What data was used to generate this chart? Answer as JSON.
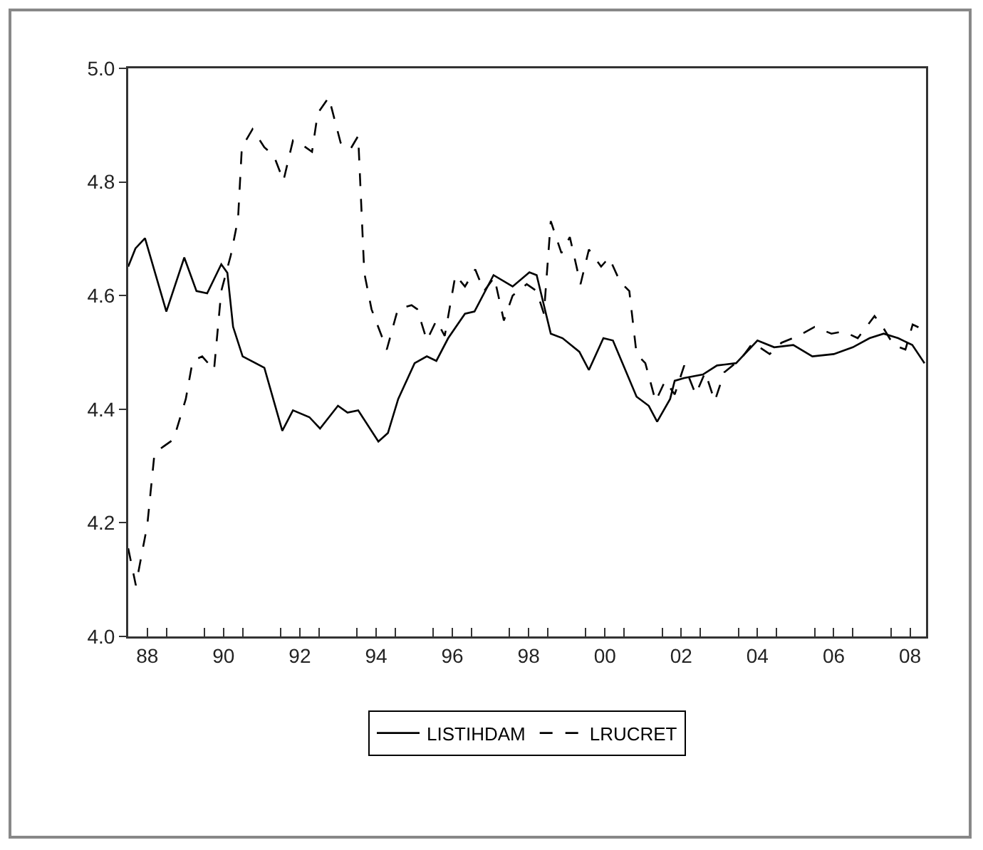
{
  "chart_data": {
    "type": "line",
    "xlim": [
      1987.5,
      2008.42
    ],
    "ylim": [
      4.0,
      5.0
    ],
    "yticks": [
      {
        "value": 4.0,
        "label": "4.0"
      },
      4.2,
      4.4,
      4.6,
      4.8,
      {
        "value": 5.0,
        "label": "5.0"
      }
    ],
    "xticks": [
      {
        "value": 1987.5,
        "label": null
      },
      {
        "value": 1988,
        "label": "88"
      },
      {
        "value": 1988.5,
        "label": null
      },
      {
        "value": 1989.5,
        "label": null
      },
      {
        "value": 1990,
        "label": "90"
      },
      {
        "value": 1990.5,
        "label": null
      },
      {
        "value": 1991.5,
        "label": null
      },
      {
        "value": 1992,
        "label": "92"
      },
      {
        "value": 1992.5,
        "label": null
      },
      {
        "value": 1993.5,
        "label": null
      },
      {
        "value": 1994,
        "label": "94"
      },
      {
        "value": 1994.5,
        "label": null
      },
      {
        "value": 1995.5,
        "label": null
      },
      {
        "value": 1996,
        "label": "96"
      },
      {
        "value": 1996.5,
        "label": null
      },
      {
        "value": 1997.5,
        "label": null
      },
      {
        "value": 1998,
        "label": "98"
      },
      {
        "value": 1998.5,
        "label": null
      },
      {
        "value": 1999.5,
        "label": null
      },
      {
        "value": 2000,
        "label": "00"
      },
      {
        "value": 2000.5,
        "label": null
      },
      {
        "value": 2001.5,
        "label": null
      },
      {
        "value": 2002,
        "label": "02"
      },
      {
        "value": 2002.5,
        "label": null
      },
      {
        "value": 2003.5,
        "label": null
      },
      {
        "value": 2004,
        "label": "04"
      },
      {
        "value": 2004.5,
        "label": null
      },
      {
        "value": 2005.5,
        "label": null
      },
      {
        "value": 2006,
        "label": "06"
      },
      {
        "value": 2006.5,
        "label": null
      },
      {
        "value": 2007.5,
        "label": null
      },
      {
        "value": 2008,
        "label": "08"
      }
    ],
    "legend": "bottom",
    "series": [
      {
        "name": "LISTIHDAM",
        "color": "#000000",
        "line_style": "solid",
        "x": [
          1987.5,
          1987.69,
          1987.94,
          1988.5,
          1988.97,
          1989.29,
          1989.57,
          1989.94,
          1990.1,
          1990.25,
          1990.5,
          1991.07,
          1991.54,
          1991.82,
          1992.25,
          1992.53,
          1993.0,
          1993.25,
          1993.53,
          1994.06,
          1994.31,
          1994.58,
          1995.01,
          1995.33,
          1995.58,
          1995.89,
          1996.33,
          1996.58,
          1997.08,
          1997.58,
          1998.02,
          1998.21,
          1998.58,
          1998.89,
          1999.33,
          1999.58,
          1999.96,
          2000.21,
          2000.83,
          2001.15,
          2001.37,
          2001.71,
          2001.83,
          2002.08,
          2002.57,
          2002.94,
          2003.44,
          2004.0,
          2004.44,
          2004.94,
          2005.44,
          2006.0,
          2006.5,
          2006.94,
          2007.31,
          2007.69,
          2008.06,
          2008.38
        ],
        "values": [
          4.651,
          4.683,
          4.701,
          4.572,
          4.667,
          4.608,
          4.604,
          4.655,
          4.64,
          4.545,
          4.493,
          4.473,
          4.362,
          4.398,
          4.386,
          4.366,
          4.406,
          4.394,
          4.398,
          4.343,
          4.358,
          4.418,
          4.481,
          4.493,
          4.485,
          4.525,
          4.568,
          4.572,
          4.636,
          4.616,
          4.641,
          4.636,
          4.533,
          4.525,
          4.501,
          4.469,
          4.525,
          4.521,
          4.422,
          4.406,
          4.378,
          4.418,
          4.45,
          4.455,
          4.461,
          4.477,
          4.481,
          4.521,
          4.509,
          4.513,
          4.493,
          4.497,
          4.509,
          4.525,
          4.533,
          4.525,
          4.513,
          4.481
        ]
      },
      {
        "name": "LRUCRET",
        "color": "#000000",
        "line_style": "dashed",
        "x": [
          1987.5,
          1987.7,
          1988.0,
          1988.19,
          1988.44,
          1988.69,
          1989.01,
          1989.19,
          1989.44,
          1989.75,
          1989.94,
          1990.19,
          1990.38,
          1990.48,
          1990.76,
          1991.07,
          1991.32,
          1991.57,
          1991.82,
          1992.07,
          1992.32,
          1992.47,
          1992.76,
          1993.07,
          1993.32,
          1993.53,
          1993.69,
          1993.88,
          1994.28,
          1994.57,
          1994.93,
          1995.08,
          1995.33,
          1995.58,
          1995.8,
          1996.08,
          1996.33,
          1996.6,
          1996.83,
          1997.1,
          1997.35,
          1997.58,
          1997.95,
          1998.21,
          1998.4,
          1998.58,
          1998.86,
          1999.08,
          1999.36,
          1999.58,
          1999.9,
          2000.11,
          2000.4,
          2000.64,
          2000.83,
          2001.06,
          2001.33,
          2001.58,
          2001.83,
          2002.08,
          2002.38,
          2002.63,
          2002.88,
          2003.13,
          2003.57,
          2003.88,
          2004.32,
          2004.63,
          2005.07,
          2005.5,
          2005.94,
          2006.26,
          2006.63,
          2007.07,
          2007.32,
          2007.57,
          2007.88,
          2008.07,
          2008.32
        ],
        "values": [
          4.155,
          4.09,
          4.196,
          4.323,
          4.335,
          4.347,
          4.418,
          4.485,
          4.493,
          4.469,
          4.608,
          4.671,
          4.735,
          4.861,
          4.893,
          4.861,
          4.846,
          4.802,
          4.873,
          4.865,
          4.853,
          4.921,
          4.949,
          4.869,
          4.857,
          4.881,
          4.64,
          4.576,
          4.505,
          4.576,
          4.583,
          4.576,
          4.521,
          4.556,
          4.529,
          4.636,
          4.616,
          4.646,
          4.608,
          4.632,
          4.556,
          4.6,
          4.62,
          4.608,
          4.568,
          4.731,
          4.675,
          4.703,
          4.62,
          4.681,
          4.651,
          4.667,
          4.624,
          4.608,
          4.497,
          4.481,
          4.414,
          4.45,
          4.426,
          4.477,
          4.426,
          4.465,
          4.414,
          4.465,
          4.489,
          4.517,
          4.497,
          4.517,
          4.529,
          4.545,
          4.533,
          4.537,
          4.525,
          4.564,
          4.541,
          4.513,
          4.505,
          4.549,
          4.541
        ]
      }
    ]
  }
}
